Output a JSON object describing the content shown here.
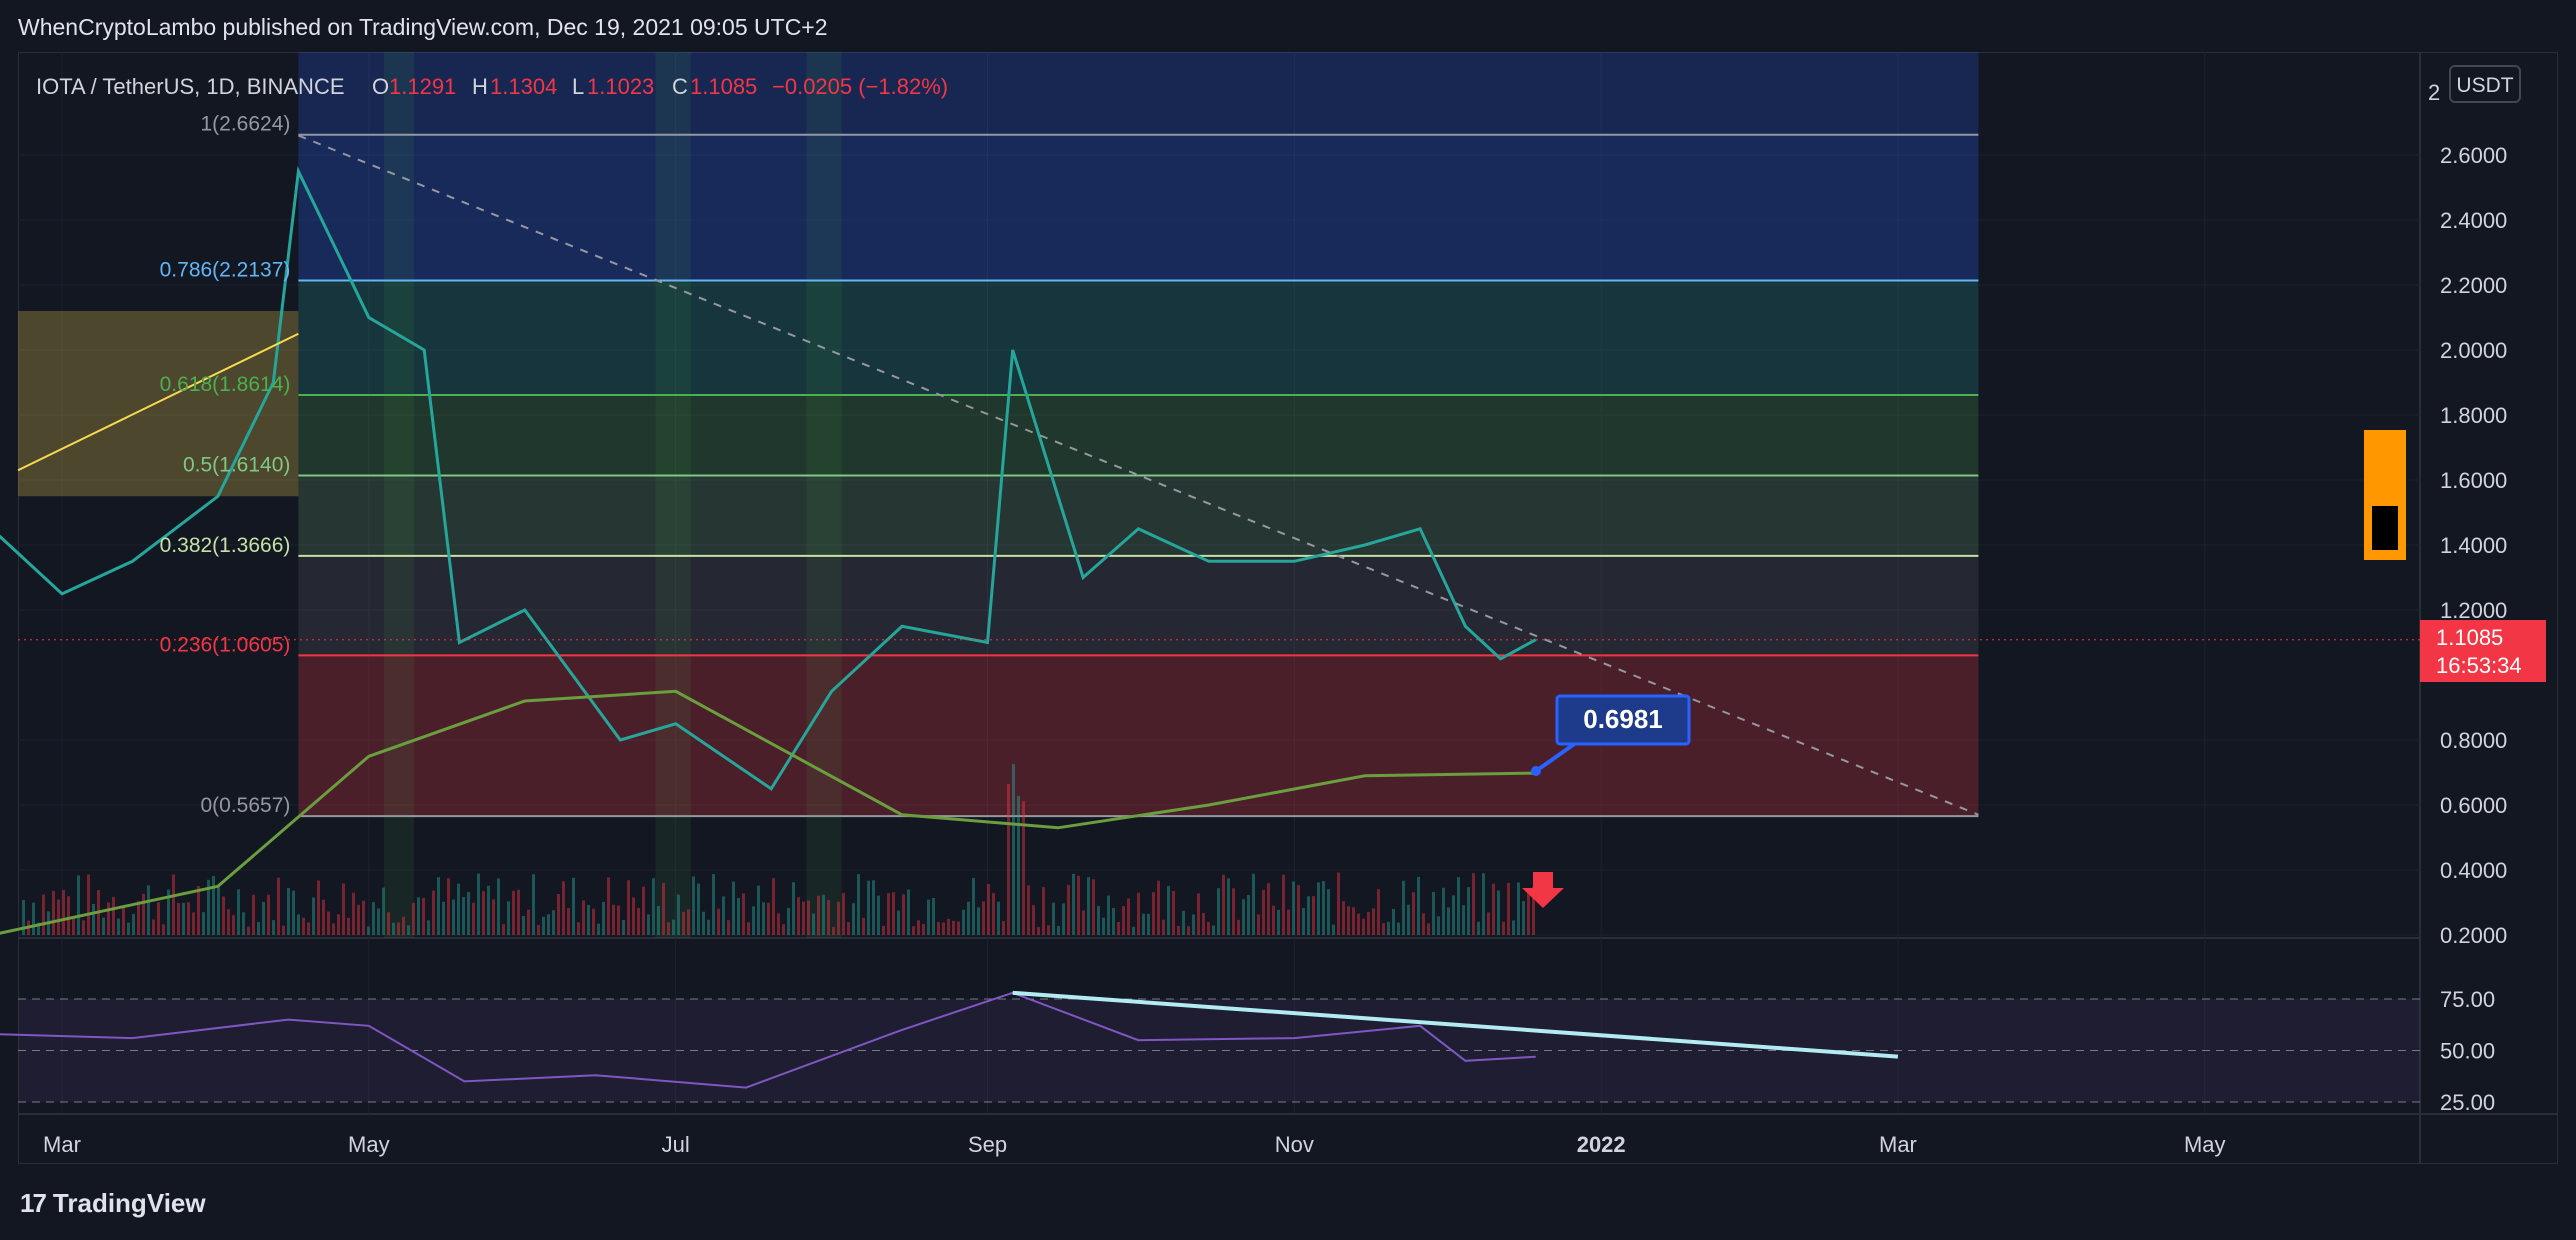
{
  "header": {
    "published": "WhenCryptoLambo published on TradingView.com, Dec 19, 2021 09:05 UTC+2"
  },
  "symbol": {
    "name": "IOTA / TetherUS, 1D, BINANCE",
    "o_label": "O",
    "o": "1.1291",
    "h_label": "H",
    "h": "1.1304",
    "l_label": "L",
    "l": "1.1023",
    "c_label": "C",
    "c": "1.1085",
    "change": "−0.0205 (−1.82%)"
  },
  "price_axis": {
    "unit": "USDT",
    "ticks": [
      "2.6000",
      "2.4000",
      "2.2000",
      "2.0000",
      "1.8000",
      "1.6000",
      "1.4000",
      "1.2000",
      "0.8000",
      "0.6000",
      "0.4000",
      "0.2000"
    ],
    "top_partial": "2",
    "current_price": "1.1085",
    "countdown": "16:53:34"
  },
  "rsi_axis": {
    "ticks": [
      "75.00",
      "50.00",
      "25.00"
    ]
  },
  "time_axis": {
    "labels": [
      "Mar",
      "May",
      "Jul",
      "Sep",
      "Nov",
      "2022",
      "Mar",
      "May"
    ]
  },
  "fib": {
    "levels": [
      {
        "label": "1(2.6624)",
        "color": "#9598a1"
      },
      {
        "label": "0.786(2.2137)",
        "color": "#64b5f6"
      },
      {
        "label": "0.618(1.8614)",
        "color": "#4caf50"
      },
      {
        "label": "0.5(1.6140)",
        "color": "#81c784"
      },
      {
        "label": "0.382(1.3666)",
        "color": "#c5e1a5"
      },
      {
        "label": "0.236(1.0605)",
        "color": "#f23645"
      },
      {
        "label": "0(0.5657)",
        "color": "#9598a1"
      }
    ]
  },
  "annotation": {
    "callout": "0.6981"
  },
  "footer": {
    "brand": "TradingView"
  },
  "chart_data": {
    "type": "line",
    "title": "IOTA / TetherUS, 1D, BINANCE",
    "ohlc": {
      "open": 1.1291,
      "high": 1.1304,
      "low": 1.1023,
      "close": 1.1085,
      "change": -0.0205,
      "change_pct": -1.82
    },
    "y_range": [
      0.2,
      2.7
    ],
    "price_series": {
      "x": [
        "2021-02-15",
        "2021-03-01",
        "2021-03-15",
        "2021-04-01",
        "2021-04-12",
        "2021-04-17",
        "2021-05-01",
        "2021-05-12",
        "2021-05-19",
        "2021-06-01",
        "2021-06-20",
        "2021-07-01",
        "2021-07-20",
        "2021-08-01",
        "2021-08-15",
        "2021-09-01",
        "2021-09-06",
        "2021-09-20",
        "2021-10-01",
        "2021-10-15",
        "2021-11-01",
        "2021-11-15",
        "2021-11-26",
        "2021-12-05",
        "2021-12-12",
        "2021-12-19"
      ],
      "values": [
        1.45,
        1.25,
        1.35,
        1.55,
        1.9,
        2.55,
        2.1,
        2.0,
        1.1,
        1.2,
        0.8,
        0.85,
        0.65,
        0.95,
        1.15,
        1.1,
        2.0,
        1.3,
        1.45,
        1.35,
        1.35,
        1.4,
        1.45,
        1.15,
        1.05,
        1.1085
      ]
    },
    "fib_levels": [
      {
        "ratio": 1,
        "price": 2.6624
      },
      {
        "ratio": 0.786,
        "price": 2.2137
      },
      {
        "ratio": 0.618,
        "price": 1.8614
      },
      {
        "ratio": 0.5,
        "price": 1.614
      },
      {
        "ratio": 0.382,
        "price": 1.3666
      },
      {
        "ratio": 0.236,
        "price": 1.0605
      },
      {
        "ratio": 0,
        "price": 0.5657
      }
    ],
    "moving_average_end_value": 0.6981,
    "rsi": {
      "range": [
        25,
        75
      ],
      "x": [
        "2021-02-15",
        "2021-03-15",
        "2021-04-15",
        "2021-05-01",
        "2021-05-20",
        "2021-06-15",
        "2021-07-15",
        "2021-08-15",
        "2021-09-06",
        "2021-10-01",
        "2021-11-01",
        "2021-11-26",
        "2021-12-05",
        "2021-12-19"
      ],
      "values": [
        58,
        56,
        65,
        62,
        35,
        38,
        32,
        60,
        78,
        55,
        56,
        62,
        45,
        47
      ]
    },
    "x_labels": [
      "Mar",
      "May",
      "Jul",
      "Sep",
      "Nov",
      "2022",
      "Mar",
      "May"
    ]
  }
}
